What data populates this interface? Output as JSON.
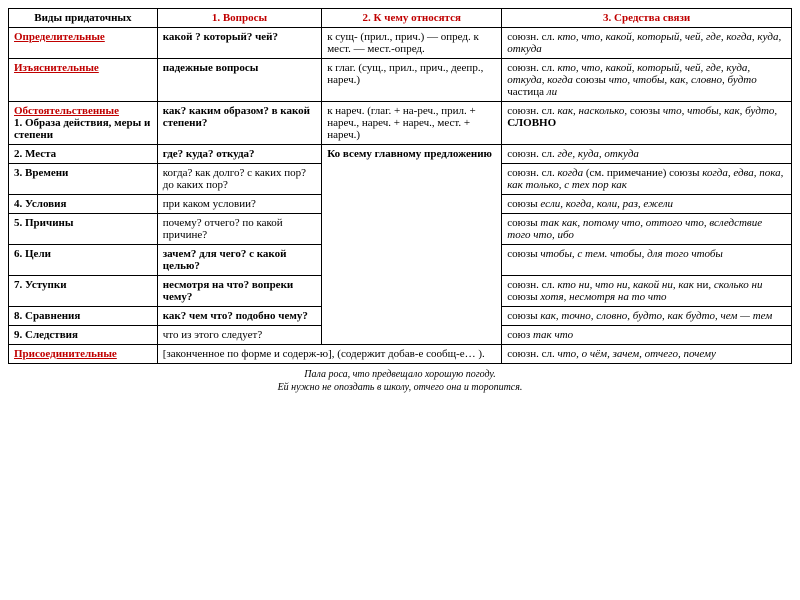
{
  "header": {
    "col1": "Виды придаточных",
    "col2": "1. Вопросы",
    "col3": "2. К чему относятся",
    "col4": "3. Средства связи"
  },
  "rows": {
    "r1c1": "Определительные",
    "r1c2": "какой ? который? чей?",
    "r1c3": "к сущ- (прил., прич.) — опред. к мест. — мест.-опред.",
    "r1c4a": "союзн. сл. ",
    "r1c4b": "кто, что, какой, который, чей, где, когда, куда, откуда",
    "r2c1": "Изъяснительные",
    "r2c2": "падежные вопросы",
    "r2c3": "к глаг. (сущ., прил., прич., деепр., нареч.)",
    "r2c4a": "союзн. сл. ",
    "r2c4b": "кто, что, какой, который, чей, где, куда, откуда, когда ",
    "r2c4c": "союзы ",
    "r2c4d": "что, чтобы, как, словно, будто ",
    "r2c4e": "частица ",
    "r2c4f": "ли",
    "r3c1a": "Обстоятельственные",
    "r3c1b": "1. Образа действия, меры и степени",
    "r3c2": "как? каким образом? в какой степени?",
    "r3c3": "к нареч. (глаг. + на-реч., прил. + нареч., нареч. + нареч., мест. + нареч.)",
    "r3c4a": "союзн. сл. ",
    "r3c4b": "как, насколько, ",
    "r3c4c": "союзы ",
    "r3c4d": "что, чтобы, как, будто, ",
    "r3c4e": "СЛОВНО",
    "r4c1": "2. Места",
    "r4c2": "где? куда? откуда?",
    "r4c3": "Ко всему главному предложению",
    "r4c4a": "союзн. сл. ",
    "r4c4b": "где, куда, откуда",
    "r5c1": "3. Времени",
    "r5c2": "когда? как долго? с каких пор? до каких пор?",
    "r5c4a": "союзн. сл. ",
    "r5c4b": "когда ",
    "r5c4c": "(см. примечание) союзы ",
    "r5c4d": "когда, едва, пока, как только, с тех пор как",
    "r6c1": "4. Условия",
    "r6c2": "при каком условии?",
    "r6c4a": "союзы ",
    "r6c4b": "если, когда, коли, раз, ежели",
    "r7c1": "5. Причины",
    "r7c2": "почему? отчего? по какой причине?",
    "r7c4a": "союзы ",
    "r7c4b": "так как, потому что, оттого что, вследствие того что, ибо",
    "r8c1": "6. Цели",
    "r8c2": "зачем? для чего? с какой целью?",
    "r8c4a": "союзы ",
    "r8c4b": "чтобы, с тем. чтобы, для того чтобы",
    "r9c1": "7. Уступки",
    "r9c2": "несмотря на что? вопреки чему?",
    "r9c4a": "союзн. сл. ",
    "r9c4b": "кто ни, что ни, какой ни, как ",
    "r9c4c": "ни, ",
    "r9c4d": "сколько ни ",
    "r9c4e": "союзы ",
    "r9c4f": "хотя, несмотря на то что",
    "r10c1": "8. Сравнения",
    "r10c2": "как? чем что? подобно чему?",
    "r10c4a": "союзы ",
    "r10c4b": "как, точно, словно, будто, как будто, чем — тем",
    "r11c1": "9. Следствия",
    "r11c2": "что из этого следует?",
    "r11c4a": "союз ",
    "r11c4b": "так что",
    "r12c1": "Присоединительные",
    "r12c2": "[законченное по форме и содерж-ю], (содержит добав-е сообщ-е… ).",
    "r12c4a": "союзн. сл. ",
    "r12c4b": "что, о чём, зачем, отчего, почему"
  },
  "footer": {
    "line1": "Пала роса, что предвещало хорошую погоду.",
    "line2": "Ей нужно не опоздать в школу, отчего она и торопится."
  }
}
